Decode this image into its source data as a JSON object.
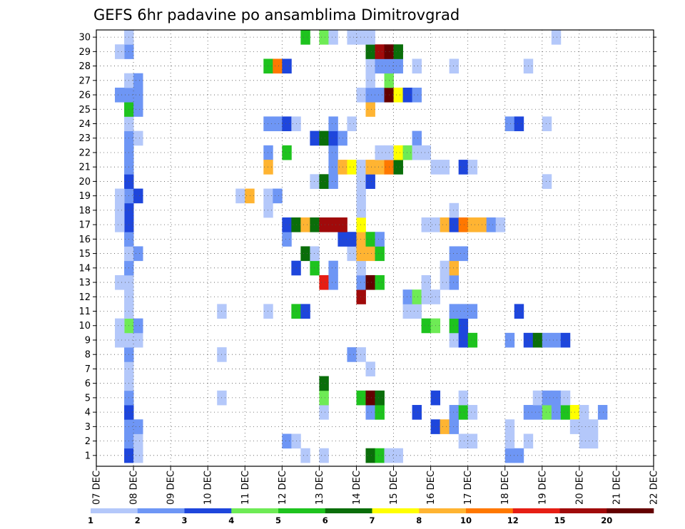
{
  "chart_data": {
    "type": "heatmap",
    "title": "GEFS 6hr padavine po ansamblima Dimitrovgrad",
    "xlabel": "",
    "ylabel": "",
    "x_ticks": [
      "07 DEC",
      "08 DEC",
      "09 DEC",
      "10 DEC",
      "11 DEC",
      "12 DEC",
      "13 DEC",
      "14 DEC",
      "15 DEC",
      "16 DEC",
      "17 DEC",
      "18 DEC",
      "19 DEC",
      "20 DEC",
      "21 DEC",
      "22 DEC"
    ],
    "y_ticks": [
      1,
      2,
      3,
      4,
      5,
      6,
      7,
      8,
      9,
      10,
      11,
      12,
      13,
      14,
      15,
      16,
      17,
      18,
      19,
      20,
      21,
      22,
      23,
      24,
      25,
      26,
      27,
      28,
      29,
      30
    ],
    "time_step_hours": 6,
    "grid": true,
    "legend_placement": "bottom",
    "colorbar": {
      "labels": [
        "1",
        "2",
        "3",
        "4",
        "5",
        "6",
        "7",
        "8",
        "10",
        "12",
        "15",
        "20"
      ],
      "colors": [
        "#b4c8fa",
        "#6e96f5",
        "#1e46dc",
        "#6eeb55",
        "#1ec31e",
        "#0a6e0a",
        "#ffff00",
        "#ffb432",
        "#ff7800",
        "#e61e14",
        "#a00a0a",
        "#640000"
      ]
    },
    "cells": [
      [
        3,
        1,
        3
      ],
      [
        3,
        2,
        2
      ],
      [
        3,
        3,
        2
      ],
      [
        3,
        4,
        3
      ],
      [
        3,
        5,
        2
      ],
      [
        3,
        6,
        1
      ],
      [
        3,
        7,
        1
      ],
      [
        3,
        8,
        2
      ],
      [
        3,
        9,
        1
      ],
      [
        3,
        10,
        4
      ],
      [
        3,
        11,
        1
      ],
      [
        3,
        12,
        1
      ],
      [
        3,
        13,
        1
      ],
      [
        3,
        14,
        2
      ],
      [
        3,
        15,
        1
      ],
      [
        3,
        16,
        2
      ],
      [
        3,
        17,
        3
      ],
      [
        3,
        18,
        3
      ],
      [
        3,
        19,
        2
      ],
      [
        3,
        20,
        3
      ],
      [
        3,
        21,
        2
      ],
      [
        3,
        22,
        2
      ],
      [
        3,
        23,
        2
      ],
      [
        3,
        24,
        1
      ],
      [
        3,
        25,
        5
      ],
      [
        3,
        26,
        2
      ],
      [
        3,
        27,
        1
      ],
      [
        3,
        29,
        2
      ],
      [
        3,
        30,
        1
      ],
      [
        2,
        9,
        1
      ],
      [
        2,
        10,
        1
      ],
      [
        2,
        13,
        1
      ],
      [
        2,
        17,
        1
      ],
      [
        2,
        18,
        1
      ],
      [
        2,
        19,
        1
      ],
      [
        2,
        26,
        2
      ],
      [
        2,
        29,
        1
      ],
      [
        4,
        1,
        1
      ],
      [
        4,
        2,
        1
      ],
      [
        4,
        3,
        2
      ],
      [
        4,
        9,
        1
      ],
      [
        4,
        10,
        2
      ],
      [
        4,
        15,
        2
      ],
      [
        4,
        19,
        3
      ],
      [
        4,
        23,
        1
      ],
      [
        4,
        25,
        2
      ],
      [
        4,
        26,
        2
      ],
      [
        4,
        27,
        2
      ],
      [
        13,
        5,
        1
      ],
      [
        13,
        8,
        1
      ],
      [
        13,
        11,
        1
      ],
      [
        15,
        19,
        1
      ],
      [
        16,
        19,
        8
      ],
      [
        18,
        18,
        1
      ],
      [
        18,
        11,
        1
      ],
      [
        18,
        19,
        1
      ],
      [
        18,
        22,
        2
      ],
      [
        18,
        21,
        8
      ],
      [
        18,
        24,
        2
      ],
      [
        18,
        28,
        5
      ],
      [
        19,
        24,
        2
      ],
      [
        19,
        19,
        2
      ],
      [
        19,
        28,
        9
      ],
      [
        20,
        2,
        2
      ],
      [
        20,
        16,
        2
      ],
      [
        20,
        24,
        3
      ],
      [
        20,
        28,
        3
      ],
      [
        20,
        22,
        5
      ],
      [
        20,
        17,
        3
      ],
      [
        21,
        2,
        1
      ],
      [
        21,
        11,
        5
      ],
      [
        21,
        14,
        3
      ],
      [
        21,
        17,
        6
      ],
      [
        21,
        24,
        1
      ],
      [
        22,
        11,
        3
      ],
      [
        22,
        15,
        6
      ],
      [
        22,
        17,
        8
      ],
      [
        22,
        30,
        5
      ],
      [
        22,
        1,
        1
      ],
      [
        23,
        14,
        5
      ],
      [
        23,
        17,
        6
      ],
      [
        23,
        20,
        1
      ],
      [
        23,
        15,
        1
      ],
      [
        23,
        23,
        3
      ],
      [
        24,
        4,
        1
      ],
      [
        24,
        5,
        4
      ],
      [
        24,
        13,
        10
      ],
      [
        24,
        17,
        11
      ],
      [
        24,
        20,
        6
      ],
      [
        24,
        30,
        4
      ],
      [
        24,
        6,
        6
      ],
      [
        24,
        1,
        1
      ],
      [
        24,
        23,
        6
      ],
      [
        25,
        13,
        2
      ],
      [
        25,
        14,
        2
      ],
      [
        25,
        17,
        11
      ],
      [
        25,
        20,
        2
      ],
      [
        25,
        21,
        2
      ],
      [
        25,
        22,
        2
      ],
      [
        25,
        23,
        3
      ],
      [
        25,
        24,
        2
      ],
      [
        25,
        30,
        1
      ],
      [
        26,
        16,
        3
      ],
      [
        26,
        17,
        11
      ],
      [
        26,
        21,
        8
      ],
      [
        26,
        23,
        2
      ],
      [
        27,
        15,
        1
      ],
      [
        27,
        16,
        3
      ],
      [
        27,
        21,
        7
      ],
      [
        27,
        24,
        1
      ],
      [
        27,
        30,
        1
      ],
      [
        27,
        8,
        2
      ],
      [
        28,
        5,
        5
      ],
      [
        28,
        8,
        1
      ],
      [
        28,
        12,
        11
      ],
      [
        28,
        13,
        2
      ],
      [
        28,
        14,
        1
      ],
      [
        28,
        15,
        8
      ],
      [
        28,
        16,
        8
      ],
      [
        28,
        17,
        7
      ],
      [
        28,
        18,
        1
      ],
      [
        28,
        19,
        1
      ],
      [
        28,
        20,
        1
      ],
      [
        28,
        21,
        1
      ],
      [
        28,
        26,
        1
      ],
      [
        28,
        30,
        1
      ],
      [
        29,
        4,
        2
      ],
      [
        29,
        5,
        12
      ],
      [
        29,
        13,
        12
      ],
      [
        29,
        15,
        8
      ],
      [
        29,
        16,
        5
      ],
      [
        29,
        20,
        3
      ],
      [
        29,
        21,
        8
      ],
      [
        29,
        25,
        8
      ],
      [
        29,
        26,
        2
      ],
      [
        29,
        27,
        1
      ],
      [
        29,
        28,
        1
      ],
      [
        29,
        29,
        6
      ],
      [
        29,
        30,
        1
      ],
      [
        29,
        7,
        1
      ],
      [
        29,
        1,
        6
      ],
      [
        30,
        1,
        5
      ],
      [
        30,
        4,
        5
      ],
      [
        30,
        5,
        6
      ],
      [
        30,
        13,
        5
      ],
      [
        30,
        15,
        5
      ],
      [
        30,
        16,
        2
      ],
      [
        30,
        21,
        8
      ],
      [
        30,
        22,
        1
      ],
      [
        30,
        26,
        2
      ],
      [
        30,
        28,
        2
      ],
      [
        30,
        29,
        11
      ],
      [
        31,
        1,
        1
      ],
      [
        31,
        21,
        9
      ],
      [
        31,
        22,
        1
      ],
      [
        31,
        26,
        12
      ],
      [
        31,
        27,
        4
      ],
      [
        31,
        28,
        2
      ],
      [
        31,
        29,
        12
      ],
      [
        32,
        1,
        1
      ],
      [
        32,
        21,
        6
      ],
      [
        32,
        22,
        7
      ],
      [
        32,
        26,
        7
      ],
      [
        32,
        28,
        2
      ],
      [
        32,
        29,
        6
      ],
      [
        33,
        11,
        1
      ],
      [
        33,
        12,
        2
      ],
      [
        33,
        22,
        4
      ],
      [
        33,
        26,
        3
      ],
      [
        34,
        11,
        1
      ],
      [
        34,
        23,
        2
      ],
      [
        34,
        26,
        2
      ],
      [
        34,
        22,
        1
      ],
      [
        34,
        12,
        4
      ],
      [
        34,
        28,
        1
      ],
      [
        34,
        4,
        3
      ],
      [
        35,
        12,
        1
      ],
      [
        35,
        22,
        1
      ],
      [
        35,
        10,
        5
      ],
      [
        35,
        17,
        1
      ],
      [
        35,
        13,
        1
      ],
      [
        36,
        17,
        1
      ],
      [
        36,
        5,
        3
      ],
      [
        36,
        10,
        4
      ],
      [
        36,
        21,
        1
      ],
      [
        36,
        3,
        3
      ],
      [
        36,
        12,
        1
      ],
      [
        37,
        3,
        8
      ],
      [
        37,
        17,
        8
      ],
      [
        37,
        14,
        1
      ],
      [
        37,
        21,
        1
      ],
      [
        37,
        13,
        1
      ],
      [
        38,
        4,
        2
      ],
      [
        38,
        3,
        2
      ],
      [
        38,
        9,
        1
      ],
      [
        38,
        10,
        5
      ],
      [
        38,
        11,
        2
      ],
      [
        38,
        13,
        2
      ],
      [
        38,
        14,
        8
      ],
      [
        38,
        15,
        2
      ],
      [
        38,
        17,
        3
      ],
      [
        38,
        18,
        1
      ],
      [
        38,
        28,
        1
      ],
      [
        39,
        4,
        5
      ],
      [
        39,
        5,
        1
      ],
      [
        39,
        9,
        3
      ],
      [
        39,
        10,
        3
      ],
      [
        39,
        11,
        2
      ],
      [
        39,
        15,
        2
      ],
      [
        39,
        17,
        9
      ],
      [
        39,
        21,
        3
      ],
      [
        39,
        2,
        1
      ],
      [
        40,
        2,
        1
      ],
      [
        40,
        4,
        1
      ],
      [
        40,
        17,
        8
      ],
      [
        40,
        9,
        5
      ],
      [
        40,
        11,
        2
      ],
      [
        40,
        21,
        1
      ],
      [
        41,
        17,
        8
      ],
      [
        42,
        17,
        2
      ],
      [
        43,
        17,
        1
      ],
      [
        44,
        1,
        2
      ],
      [
        44,
        9,
        2
      ],
      [
        44,
        24,
        2
      ],
      [
        44,
        2,
        1
      ],
      [
        44,
        3,
        1
      ],
      [
        45,
        1,
        2
      ],
      [
        45,
        11,
        3
      ],
      [
        45,
        24,
        3
      ],
      [
        46,
        4,
        2
      ],
      [
        46,
        9,
        3
      ],
      [
        46,
        2,
        1
      ],
      [
        46,
        28,
        1
      ],
      [
        47,
        4,
        2
      ],
      [
        47,
        9,
        6
      ],
      [
        47,
        5,
        1
      ],
      [
        48,
        4,
        4
      ],
      [
        48,
        5,
        2
      ],
      [
        48,
        9,
        2
      ],
      [
        48,
        24,
        1
      ],
      [
        48,
        20,
        1
      ],
      [
        49,
        4,
        2
      ],
      [
        49,
        5,
        2
      ],
      [
        49,
        9,
        2
      ],
      [
        49,
        30,
        1
      ],
      [
        50,
        4,
        5
      ],
      [
        50,
        5,
        1
      ],
      [
        50,
        9,
        3
      ],
      [
        51,
        4,
        7
      ],
      [
        51,
        3,
        1
      ],
      [
        52,
        3,
        1
      ],
      [
        52,
        4,
        1
      ],
      [
        52,
        2,
        1
      ],
      [
        53,
        3,
        1
      ],
      [
        53,
        2,
        1
      ],
      [
        54,
        4,
        2
      ]
    ]
  }
}
